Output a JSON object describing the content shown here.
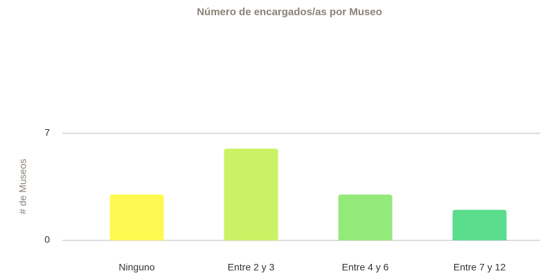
{
  "chart_data": {
    "type": "bar",
    "title": "Número de encargados/as por Museo",
    "y_label": "# de Museos",
    "categories": [
      "Ninguno",
      "Entre 2 y 3",
      "Entre 4 y 6",
      "Entre 7 y 12"
    ],
    "values": [
      3,
      6,
      3,
      2
    ],
    "colors": [
      "#fff851",
      "#cbf264",
      "#93ea7b",
      "#5cdc8d"
    ],
    "ylim": [
      0,
      7
    ],
    "yticks": [
      0,
      7
    ],
    "grid": true
  }
}
